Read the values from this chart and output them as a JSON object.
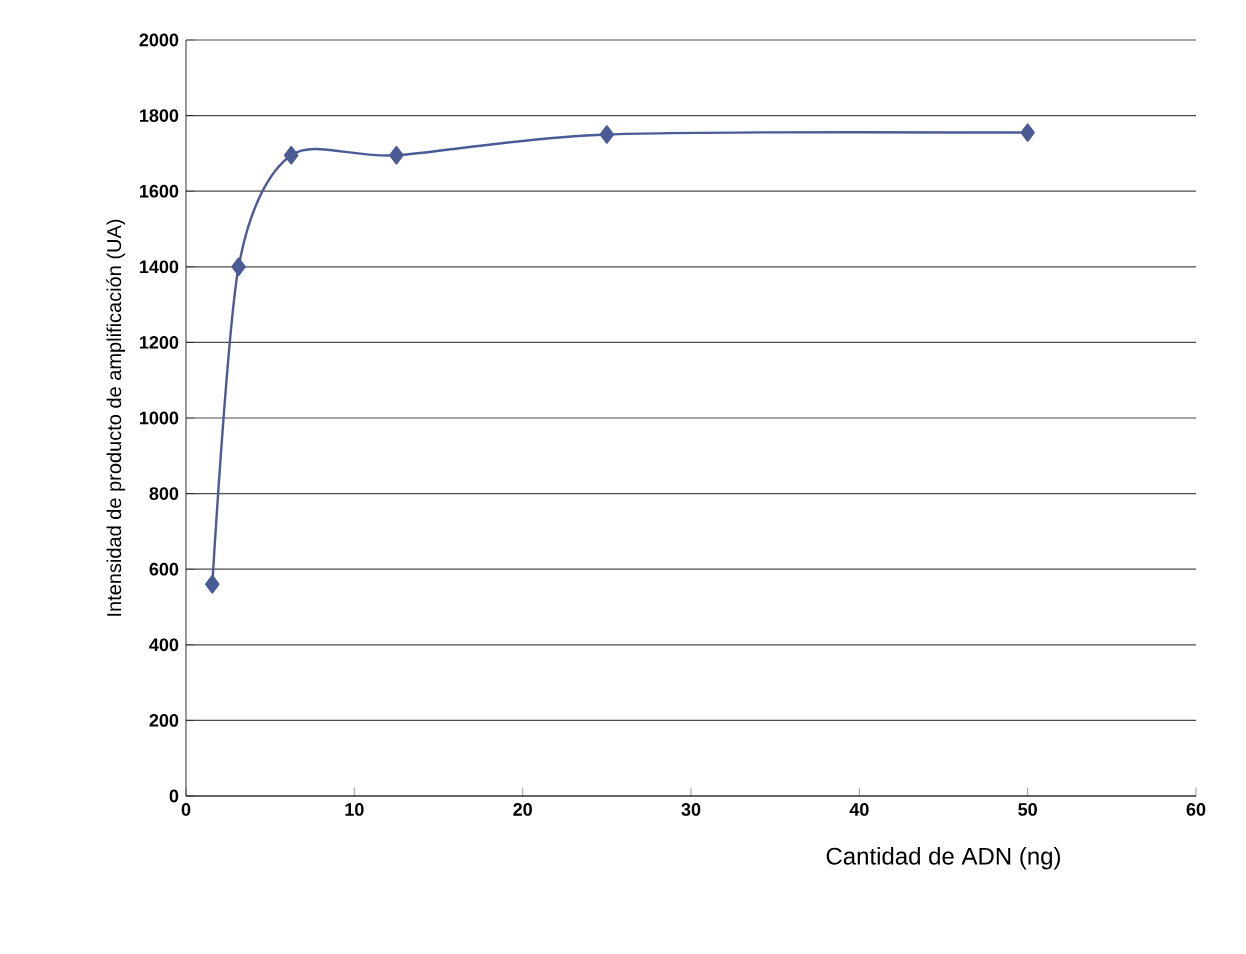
{
  "chart_data": {
    "type": "line",
    "xlabel": "Cantidad de ADN (ng)",
    "ylabel": "Intensidad de producto de amplificación (UA)",
    "x": [
      1.5625,
      3.125,
      6.25,
      12.5,
      25,
      50
    ],
    "values": [
      560,
      1400,
      1695,
      1695,
      1750,
      1755
    ],
    "color": "#4b5b96",
    "marker": "diamond",
    "line_style": "solid",
    "grid": "y",
    "xlim": [
      0,
      60
    ],
    "xticks": [
      0,
      10,
      20,
      30,
      40,
      50,
      60
    ],
    "ylim": [
      0,
      2000
    ],
    "yticks": [
      0,
      200,
      400,
      600,
      800,
      1000,
      1200,
      1400,
      1600,
      1800,
      2000
    ]
  }
}
